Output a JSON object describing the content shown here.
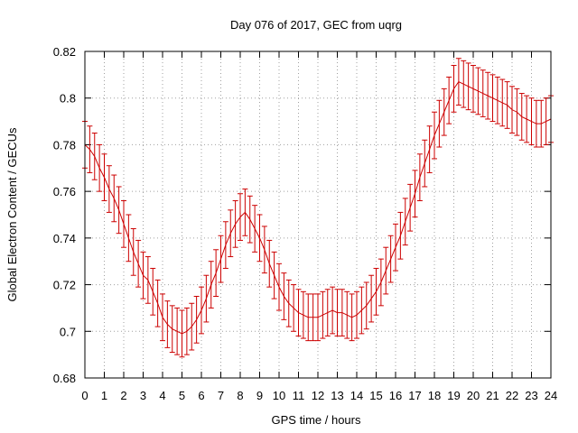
{
  "chart_data": {
    "type": "line",
    "title": "Day 076 of 2017, GEC from uqrg",
    "xlabel": "GPS time / hours",
    "ylabel": "Global Electron Content / GECUs",
    "xlim": [
      0,
      24
    ],
    "ylim": [
      0.68,
      0.82
    ],
    "xticks": [
      0,
      1,
      2,
      3,
      4,
      5,
      6,
      7,
      8,
      9,
      10,
      11,
      12,
      13,
      14,
      15,
      16,
      17,
      18,
      19,
      20,
      21,
      22,
      23,
      24
    ],
    "yticks": [
      0.68,
      0.7,
      0.72,
      0.74,
      0.76,
      0.78,
      0.8,
      0.82
    ],
    "ytick_labels": [
      "0.68",
      "0.7",
      "0.72",
      "0.74",
      "0.76",
      "0.78",
      "0.8",
      "0.82"
    ],
    "grid": true,
    "color": "#cc0000",
    "error_bar_halfwidth": 0.01,
    "series": [
      {
        "x": [
          0.0,
          0.25,
          0.5,
          0.75,
          1.0,
          1.25,
          1.5,
          1.75,
          2.0,
          2.25,
          2.5,
          2.75,
          3.0,
          3.25,
          3.5,
          3.75,
          4.0,
          4.25,
          4.5,
          4.75,
          5.0,
          5.25,
          5.5,
          5.75,
          6.0,
          6.25,
          6.5,
          6.75,
          7.0,
          7.25,
          7.5,
          7.75,
          8.0,
          8.25,
          8.5,
          8.75,
          9.0,
          9.25,
          9.5,
          9.75,
          10.0,
          10.25,
          10.5,
          10.75,
          11.0,
          11.25,
          11.5,
          11.75,
          12.0,
          12.25,
          12.5,
          12.75,
          13.0,
          13.25,
          13.5,
          13.75,
          14.0,
          14.25,
          14.5,
          14.75,
          15.0,
          15.25,
          15.5,
          15.75,
          16.0,
          16.25,
          16.5,
          16.75,
          17.0,
          17.25,
          17.5,
          17.75,
          18.0,
          18.25,
          18.5,
          18.75,
          19.0,
          19.25,
          19.5,
          19.75,
          20.0,
          20.25,
          20.5,
          20.75,
          21.0,
          21.25,
          21.5,
          21.75,
          22.0,
          22.25,
          22.5,
          22.75,
          23.0,
          23.25,
          23.5,
          23.75,
          24.0
        ],
        "y": [
          0.78,
          0.778,
          0.775,
          0.77,
          0.766,
          0.761,
          0.757,
          0.752,
          0.746,
          0.74,
          0.734,
          0.729,
          0.724,
          0.722,
          0.717,
          0.712,
          0.706,
          0.703,
          0.701,
          0.7,
          0.699,
          0.7,
          0.702,
          0.705,
          0.709,
          0.714,
          0.72,
          0.725,
          0.731,
          0.737,
          0.742,
          0.746,
          0.749,
          0.751,
          0.748,
          0.744,
          0.74,
          0.735,
          0.729,
          0.724,
          0.719,
          0.715,
          0.712,
          0.71,
          0.708,
          0.707,
          0.706,
          0.706,
          0.706,
          0.707,
          0.708,
          0.709,
          0.708,
          0.708,
          0.707,
          0.706,
          0.707,
          0.709,
          0.711,
          0.714,
          0.717,
          0.721,
          0.726,
          0.731,
          0.736,
          0.741,
          0.747,
          0.753,
          0.759,
          0.766,
          0.772,
          0.778,
          0.784,
          0.789,
          0.794,
          0.799,
          0.804,
          0.807,
          0.806,
          0.805,
          0.804,
          0.803,
          0.802,
          0.801,
          0.8,
          0.799,
          0.798,
          0.797,
          0.795,
          0.794,
          0.792,
          0.791,
          0.79,
          0.789,
          0.789,
          0.79,
          0.791
        ]
      }
    ]
  }
}
